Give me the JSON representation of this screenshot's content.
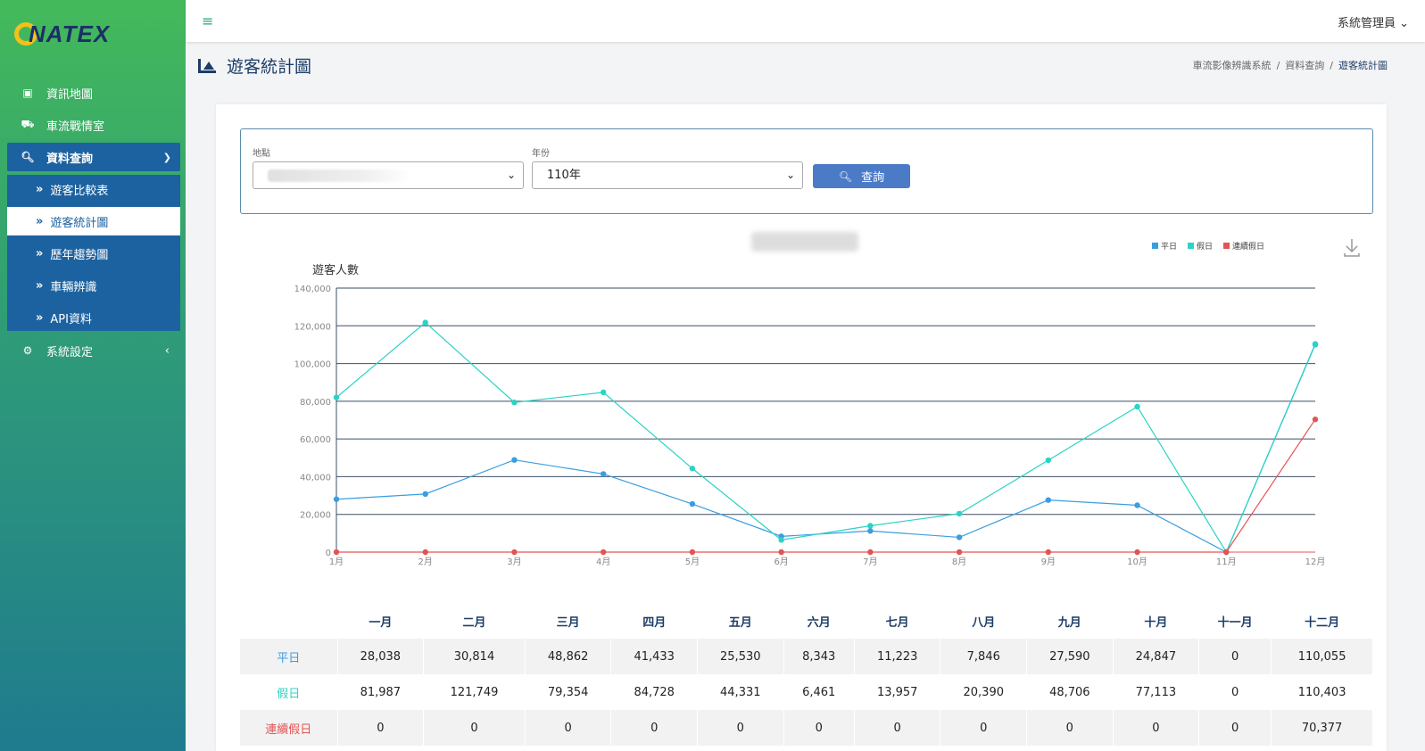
{
  "app": {
    "logo_text": "NATEX"
  },
  "sidebar": {
    "items": [
      {
        "label": "資訊地圖",
        "icon": "map-icon"
      },
      {
        "label": "車流戰情室",
        "icon": "car-icon"
      },
      {
        "label": "資料查詢",
        "icon": "search-icon"
      },
      {
        "label": "系統設定",
        "icon": "user-gear-icon"
      }
    ],
    "submenu": [
      {
        "label": "遊客比較表"
      },
      {
        "label": "遊客統計圖"
      },
      {
        "label": "歷年趨勢圖"
      },
      {
        "label": "車輛辨識"
      },
      {
        "label": "API資料"
      }
    ]
  },
  "topbar": {
    "user": "系統管理員"
  },
  "page": {
    "title": "遊客統計圖",
    "breadcrumb": [
      "車流影像辨識系統",
      "資料查詢",
      "遊客統計圖"
    ]
  },
  "filters": {
    "location_label": "地點",
    "year_label": "年份",
    "year_value": "110年",
    "search_label": "查詢"
  },
  "colors": {
    "weekday": "#3a9de0",
    "holiday": "#2bd3c4",
    "long_holiday": "#e35454",
    "nav_active": "#1d62a0"
  },
  "chart_data": {
    "type": "line",
    "ylabel": "遊客人數",
    "ylim": [
      0,
      140000
    ],
    "yticks": [
      "0",
      "20,000",
      "40,000",
      "60,000",
      "80,000",
      "100,000",
      "120,000",
      "140,000"
    ],
    "categories": [
      "1月",
      "2月",
      "3月",
      "4月",
      "5月",
      "6月",
      "7月",
      "8月",
      "9月",
      "10月",
      "11月",
      "12月"
    ],
    "legend_position": "top-right",
    "grid": true,
    "series": [
      {
        "name": "平日",
        "color": "#3a9de0",
        "values": [
          28038,
          30814,
          48862,
          41433,
          25530,
          8343,
          11223,
          7846,
          27590,
          24847,
          0,
          110055
        ]
      },
      {
        "name": "假日",
        "color": "#2bd3c4",
        "values": [
          81987,
          121749,
          79354,
          84728,
          44331,
          6461,
          13957,
          20390,
          48706,
          77113,
          0,
          110403
        ]
      },
      {
        "name": "連續假日",
        "color": "#e35454",
        "values": [
          0,
          0,
          0,
          0,
          0,
          0,
          0,
          0,
          0,
          0,
          0,
          70377
        ]
      }
    ]
  },
  "table": {
    "headers": [
      "",
      "一月",
      "二月",
      "三月",
      "四月",
      "五月",
      "六月",
      "七月",
      "八月",
      "九月",
      "十月",
      "十一月",
      "十二月"
    ],
    "rows": [
      {
        "label": "平日",
        "color": "#3a9de0",
        "values": [
          "28,038",
          "30,814",
          "48,862",
          "41,433",
          "25,530",
          "8,343",
          "11,223",
          "7,846",
          "27,590",
          "24,847",
          "0",
          "110,055"
        ]
      },
      {
        "label": "假日",
        "color": "#2bd3c4",
        "values": [
          "81,987",
          "121,749",
          "79,354",
          "84,728",
          "44,331",
          "6,461",
          "13,957",
          "20,390",
          "48,706",
          "77,113",
          "0",
          "110,403"
        ]
      },
      {
        "label": "連續假日",
        "color": "#e35454",
        "values": [
          "0",
          "0",
          "0",
          "0",
          "0",
          "0",
          "0",
          "0",
          "0",
          "0",
          "0",
          "70,377"
        ]
      }
    ]
  }
}
